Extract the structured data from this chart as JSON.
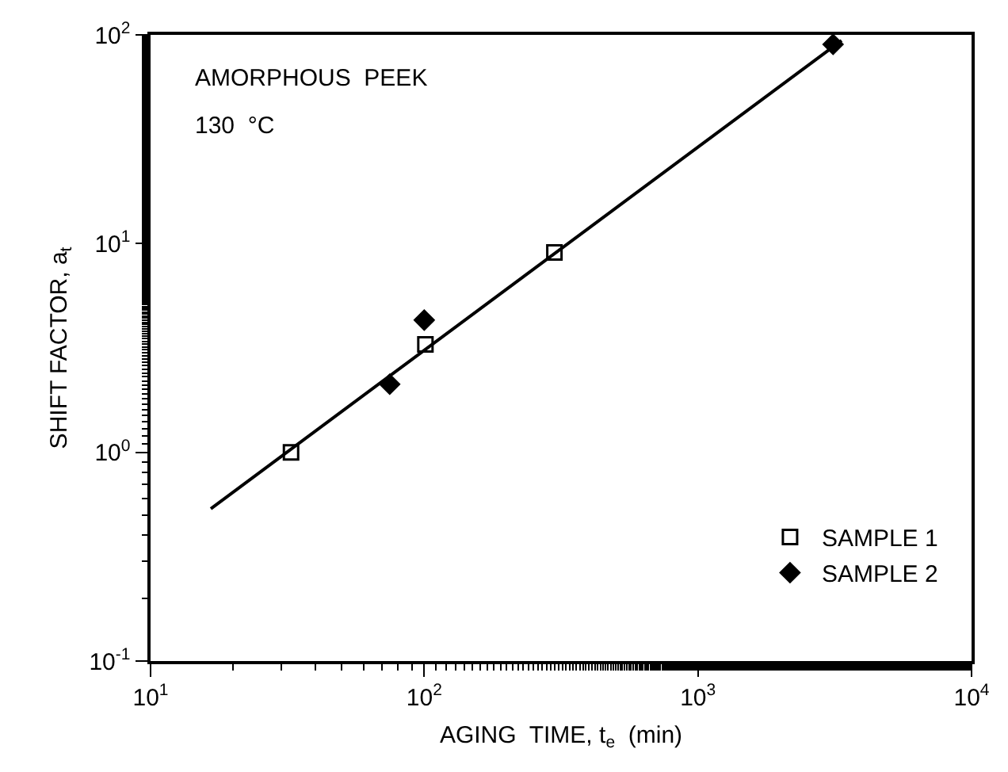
{
  "chart_data": {
    "type": "scatter",
    "xlabel": "AGING  TIME, t$_{e}$  (min)",
    "ylabel": "SHIFT FACTOR, a$_{t}$",
    "log": "xy",
    "grid": false,
    "legend": "bottom right",
    "annotations": [
      "AMORPHOUS  PEEK",
      "130  °C"
    ],
    "xlim": [
      10,
      10000
    ],
    "ylim": [
      0.1,
      100
    ],
    "xticks": [
      {
        "value": 10,
        "label": "10$^{1}$"
      },
      {
        "value": 100,
        "label": "10$^{2}$"
      },
      {
        "value": 1000,
        "label": "10$^{3}$"
      },
      {
        "value": 10000,
        "label": "10$^{4}$"
      }
    ],
    "yticks": [
      {
        "value": 0.1,
        "label": "10$^{-1}$"
      },
      {
        "value": 1,
        "label": "10$^{0}$"
      },
      {
        "value": 10,
        "label": "10$^{1}$"
      },
      {
        "value": 100,
        "label": "10$^{2}$"
      }
    ],
    "series": [
      {
        "name": "SAMPLE 1",
        "color": "#000000",
        "marker": "square",
        "x": [
          32.6,
          101,
          299
        ],
        "values": [
          1.0,
          3.29,
          9.06
        ]
      },
      {
        "name": "SAMPLE 2",
        "color": "#000000",
        "marker": "diamond",
        "x": [
          74.8,
          100,
          3119
        ],
        "values": [
          2.12,
          4.3,
          90
        ]
      },
      {
        "type": "line",
        "color": "#000000",
        "marker": "none",
        "line_style": "solid",
        "x": [
          16.6,
          3350
        ],
        "values": [
          0.537,
          94
        ]
      }
    ]
  }
}
